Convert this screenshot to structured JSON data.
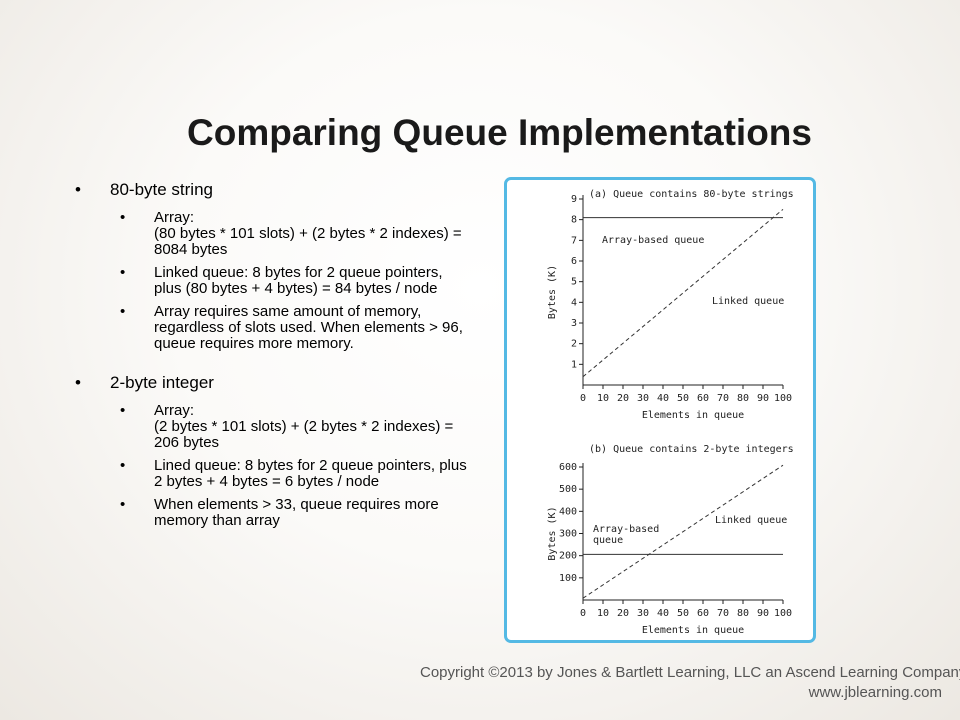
{
  "title": "Comparing Queue Implementations",
  "bullets": [
    {
      "text": "80-byte string",
      "sub": [
        "Array:\n(80 bytes * 101 slots) + (2 bytes * 2 indexes) = 8084 bytes",
        "Linked queue: 8 bytes for 2 queue pointers, plus (80 bytes + 4 bytes) = 84 bytes / node",
        "Array requires same amount of memory, regardless of slots used. When elements > 96, queue requires more memory."
      ]
    },
    {
      "text": "2-byte integer",
      "sub": [
        "Array:\n(2 bytes * 101 slots) + (2 bytes * 2 indexes) = 206 bytes",
        "Lined queue: 8 bytes for 2 queue pointers, plus 2 bytes + 4 bytes = 6 bytes / node",
        "When elements > 33, queue requires more memory than array"
      ]
    }
  ],
  "footer": {
    "copyright": "Copyright ©2013 by Jones & Bartlett Learning, LLC an Ascend Learning Company",
    "website": "www.jblearning.com"
  },
  "colors": {
    "frame_border": "#54b9e4"
  },
  "chart_data": [
    {
      "type": "line",
      "title": "(a) Queue contains 80-byte strings",
      "xlabel": "Elements in queue",
      "ylabel": "Bytes (K)",
      "xlim": [
        0,
        100
      ],
      "ylim": [
        0,
        9
      ],
      "xticks": [
        0,
        10,
        20,
        30,
        40,
        50,
        60,
        70,
        80,
        90,
        100
      ],
      "yticks": [
        1,
        2,
        3,
        4,
        5,
        6,
        7,
        8,
        9
      ],
      "series": [
        {
          "name": "Array-based queue",
          "style": "solid",
          "x": [
            0,
            100
          ],
          "y": [
            8.1,
            8.1
          ]
        },
        {
          "name": "Linked queue",
          "style": "dashed",
          "x": [
            0,
            100
          ],
          "y": [
            0.4,
            8.5
          ]
        }
      ]
    },
    {
      "type": "line",
      "title": "(b) Queue contains 2-byte integers",
      "xlabel": "Elements in queue",
      "ylabel": "Bytes (K)",
      "xlim": [
        0,
        100
      ],
      "ylim": [
        0,
        600
      ],
      "xticks": [
        0,
        10,
        20,
        30,
        40,
        50,
        60,
        70,
        80,
        90,
        100
      ],
      "yticks": [
        100,
        200,
        300,
        400,
        500,
        600
      ],
      "series": [
        {
          "name": "Array-based\nqueue",
          "style": "solid",
          "x": [
            0,
            100
          ],
          "y": [
            206,
            206
          ]
        },
        {
          "name": "Linked queue",
          "style": "dashed",
          "x": [
            0,
            100
          ],
          "y": [
            8,
            608
          ]
        }
      ]
    }
  ]
}
